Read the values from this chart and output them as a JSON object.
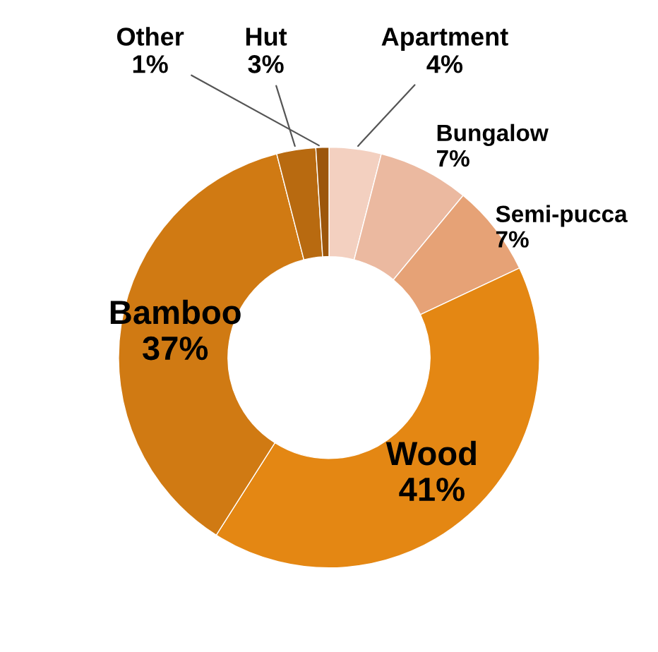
{
  "chart_data": {
    "type": "donut",
    "categories": [
      "Apartment",
      "Bungalow",
      "Semi-pucca",
      "Wood",
      "Bamboo",
      "Hut",
      "Other"
    ],
    "values": [
      4,
      7,
      7,
      41,
      37,
      3,
      1
    ],
    "value_labels": [
      "4%",
      "7%",
      "7%",
      "41%",
      "37%",
      "3%",
      "1%"
    ],
    "colors": [
      "#f3d0c0",
      "#ebb9a0",
      "#e6a276",
      "#e48713",
      "#d07a13",
      "#b86a10",
      "#9c560b"
    ],
    "legend": false
  }
}
